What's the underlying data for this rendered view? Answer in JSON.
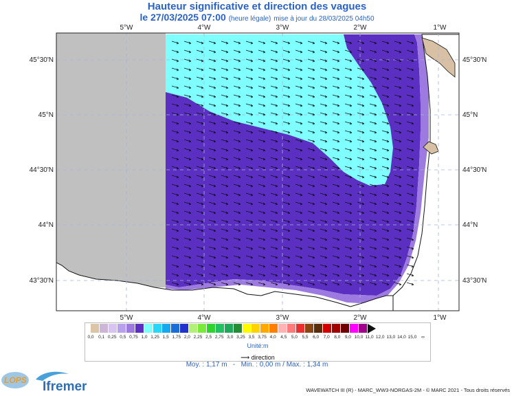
{
  "header": {
    "title": "Hauteur significative et direction des vagues",
    "date_text": "le 27/03/2025 07:00",
    "time_note": "(heure légale)",
    "update_text": "mise à jour du 28/03/2025 04h50"
  },
  "map": {
    "lon_labels": [
      "5°W",
      "4°W",
      "3°W",
      "2°W",
      "1°W"
    ],
    "lat_labels": [
      "45°30'N",
      "45°N",
      "44°30'N",
      "44°N",
      "43°30'N"
    ],
    "colors": {
      "land": "#d8c0a4",
      "no_data": "#c0c0c0",
      "wave_1_0": "#5a2fc2",
      "wave_1_25": "#7fffff",
      "coast_0_75": "#9d7ae0"
    }
  },
  "legend": {
    "ticks": [
      "0,0",
      "0,1",
      "0,25",
      "0,5",
      "0,75",
      "1,0",
      "1,25",
      "1,5",
      "1,75",
      "2,0",
      "2,25",
      "2,5",
      "2,75",
      "3,0",
      "3,25",
      "3,5",
      "3,75",
      "4,0",
      "4,5",
      "5,0",
      "5,5",
      "6,0",
      "7,0",
      "8,0",
      "9,0",
      "10,0",
      "11,0",
      "12,0",
      "13,0",
      "14,0",
      "15,0",
      "∞"
    ],
    "colors": [
      "#dcc5a7",
      "#cdb5d8",
      "#d8c4f0",
      "#b8a0ec",
      "#9d7ae0",
      "#5a2fc2",
      "#7fffff",
      "#2ad6f7",
      "#18a8ee",
      "#1a6cd8",
      "#2233cc",
      "#b2f07a",
      "#7aea3a",
      "#2fd22f",
      "#23c062",
      "#1fa85a",
      "#238c34",
      "#fffa00",
      "#ffd300",
      "#ffa800",
      "#ff8000",
      "#ffb3b3",
      "#ff7a7a",
      "#e83030",
      "#8b4513",
      "#5a2d0c",
      "#d00000",
      "#a00000",
      "#700000",
      "#ff00ff",
      "#a0008a"
    ],
    "unit": "Unité:m",
    "direction_label": "direction"
  },
  "stats": {
    "mean": "Moy. : 1,17 m",
    "min_max": "Min. : 0,00 m / Max. : 1,34 m"
  },
  "footer": {
    "copyright": "WAVEWATCH III (R) - MARC_WW3-NORGAS-2M - © MARC 2021 - Tous droits réservés",
    "logo_lops": "LOPS",
    "logo_ifremer": "Ifremer"
  }
}
